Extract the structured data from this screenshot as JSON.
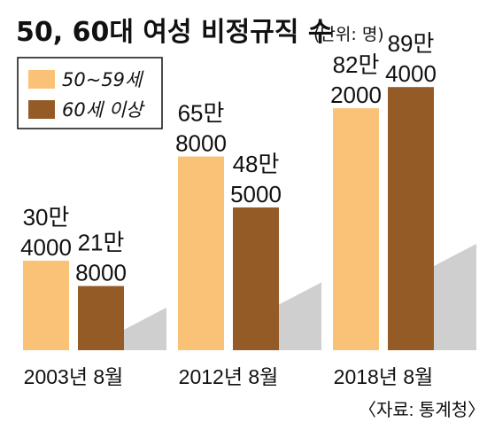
{
  "chart_data": {
    "type": "bar",
    "title": "50, 60대 여성 비정규직 수",
    "unit": "(단위: 명)",
    "categories": [
      "2003년 8월",
      "2012년 8월",
      "2018년 8월"
    ],
    "series": [
      {
        "name": "50~59세",
        "values": [
          304000,
          658000,
          822000
        ],
        "labels": [
          [
            "30만",
            "4000"
          ],
          [
            "65만",
            "8000"
          ],
          [
            "82만",
            "2000"
          ]
        ]
      },
      {
        "name": "60세 이상",
        "values": [
          218000,
          485000,
          894000
        ],
        "labels": [
          [
            "21만",
            "8000"
          ],
          [
            "48만",
            "5000"
          ],
          [
            "89만",
            "4000"
          ]
        ]
      }
    ],
    "ylim": [
      0,
      1000000
    ],
    "legend": "top-left",
    "source": "〈자료: 통계청〉"
  },
  "colors": {
    "series1": "#FAC276",
    "series2": "#955B26",
    "shadow": "#CFCFCF",
    "text": "#111111"
  }
}
